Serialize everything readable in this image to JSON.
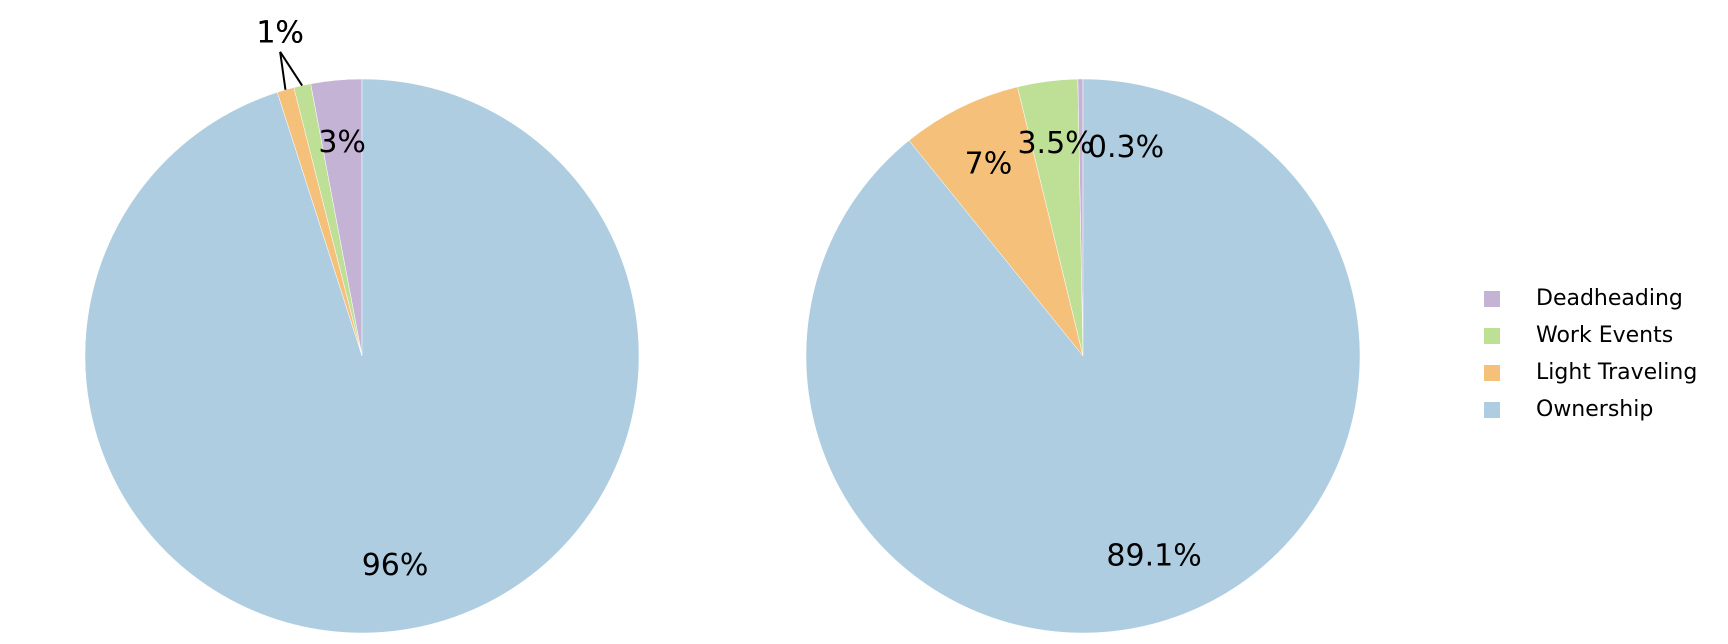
{
  "chart_data": [
    {
      "type": "pie",
      "categories": [
        "Deadheading",
        "Work Events",
        "Light Traveling",
        "Ownership"
      ],
      "values": [
        3,
        1,
        1,
        96
      ],
      "value_labels": [
        "3%",
        "1%",
        "1%",
        "96%"
      ],
      "colors": [
        "#c5b3d6",
        "#bddf96",
        "#f5c07a",
        "#aecde1"
      ]
    },
    {
      "type": "pie",
      "categories": [
        "Deadheading",
        "Work Events",
        "Light Traveling",
        "Ownership"
      ],
      "values": [
        0.3,
        3.5,
        7,
        89.1
      ],
      "value_labels": [
        "0.3%",
        "3.5%",
        "7%",
        "89.1%"
      ],
      "colors": [
        "#c5b3d6",
        "#bddf96",
        "#f5c07a",
        "#aecde1"
      ],
      "legend": "right"
    }
  ]
}
